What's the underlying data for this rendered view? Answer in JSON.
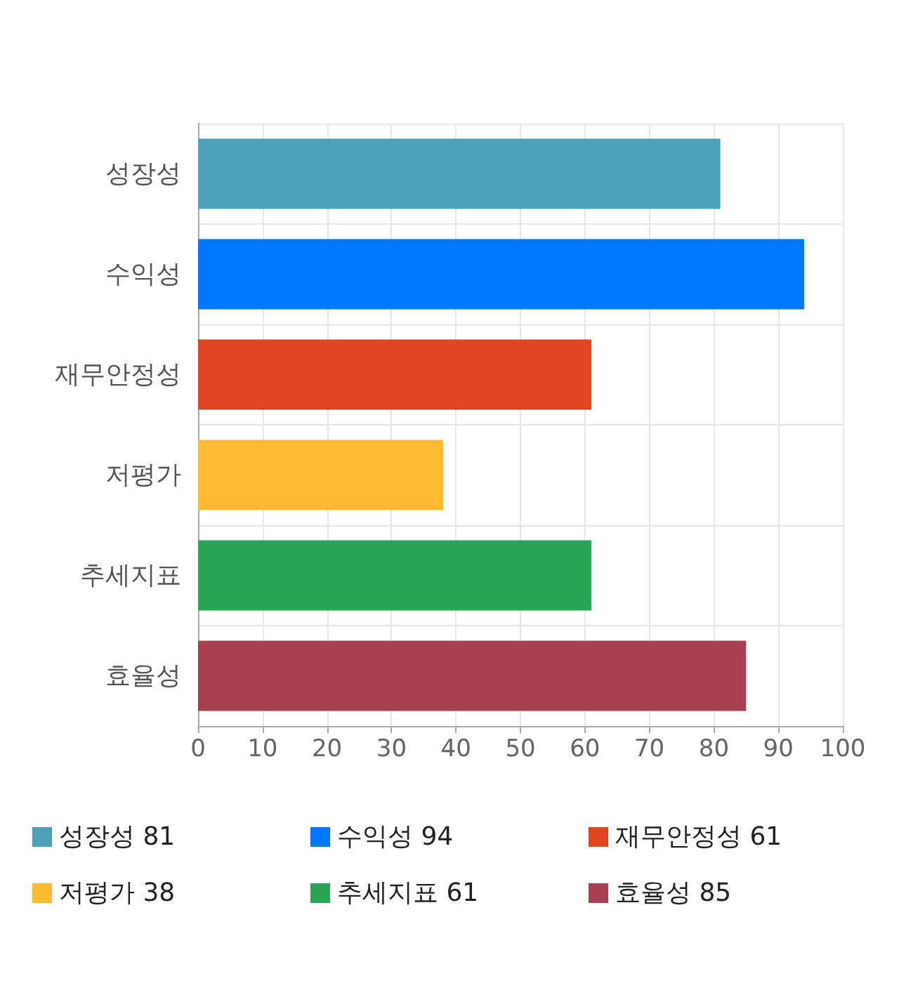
{
  "chart_data": {
    "type": "bar",
    "orientation": "horizontal",
    "categories": [
      "성장성",
      "수익성",
      "재무안정성",
      "저평가",
      "추세지표",
      "효율성"
    ],
    "series": [
      {
        "name": "성장성 81",
        "color": "#4aa0b8",
        "values": [
          81,
          null,
          null,
          null,
          null,
          null
        ]
      },
      {
        "name": "수익성 94",
        "color": "#0077ff",
        "values": [
          null,
          94,
          null,
          null,
          null,
          null
        ]
      },
      {
        "name": "재무안정성 61",
        "color": "#e24522",
        "values": [
          null,
          null,
          61,
          null,
          null,
          null
        ]
      },
      {
        "name": "저평가 38",
        "color": "#ffb933",
        "values": [
          null,
          null,
          null,
          38,
          null,
          null
        ]
      },
      {
        "name": "추세지표 61",
        "color": "#29a655",
        "values": [
          null,
          null,
          null,
          null,
          61,
          null
        ]
      },
      {
        "name": "효율성 85",
        "color": "#a8414f",
        "values": [
          null,
          null,
          null,
          null,
          null,
          85
        ]
      }
    ],
    "xlim": [
      0,
      100
    ],
    "xticks": [
      0,
      10,
      20,
      30,
      40,
      50,
      60,
      70,
      80,
      90,
      100
    ],
    "grid": true,
    "legend": "bottom"
  }
}
